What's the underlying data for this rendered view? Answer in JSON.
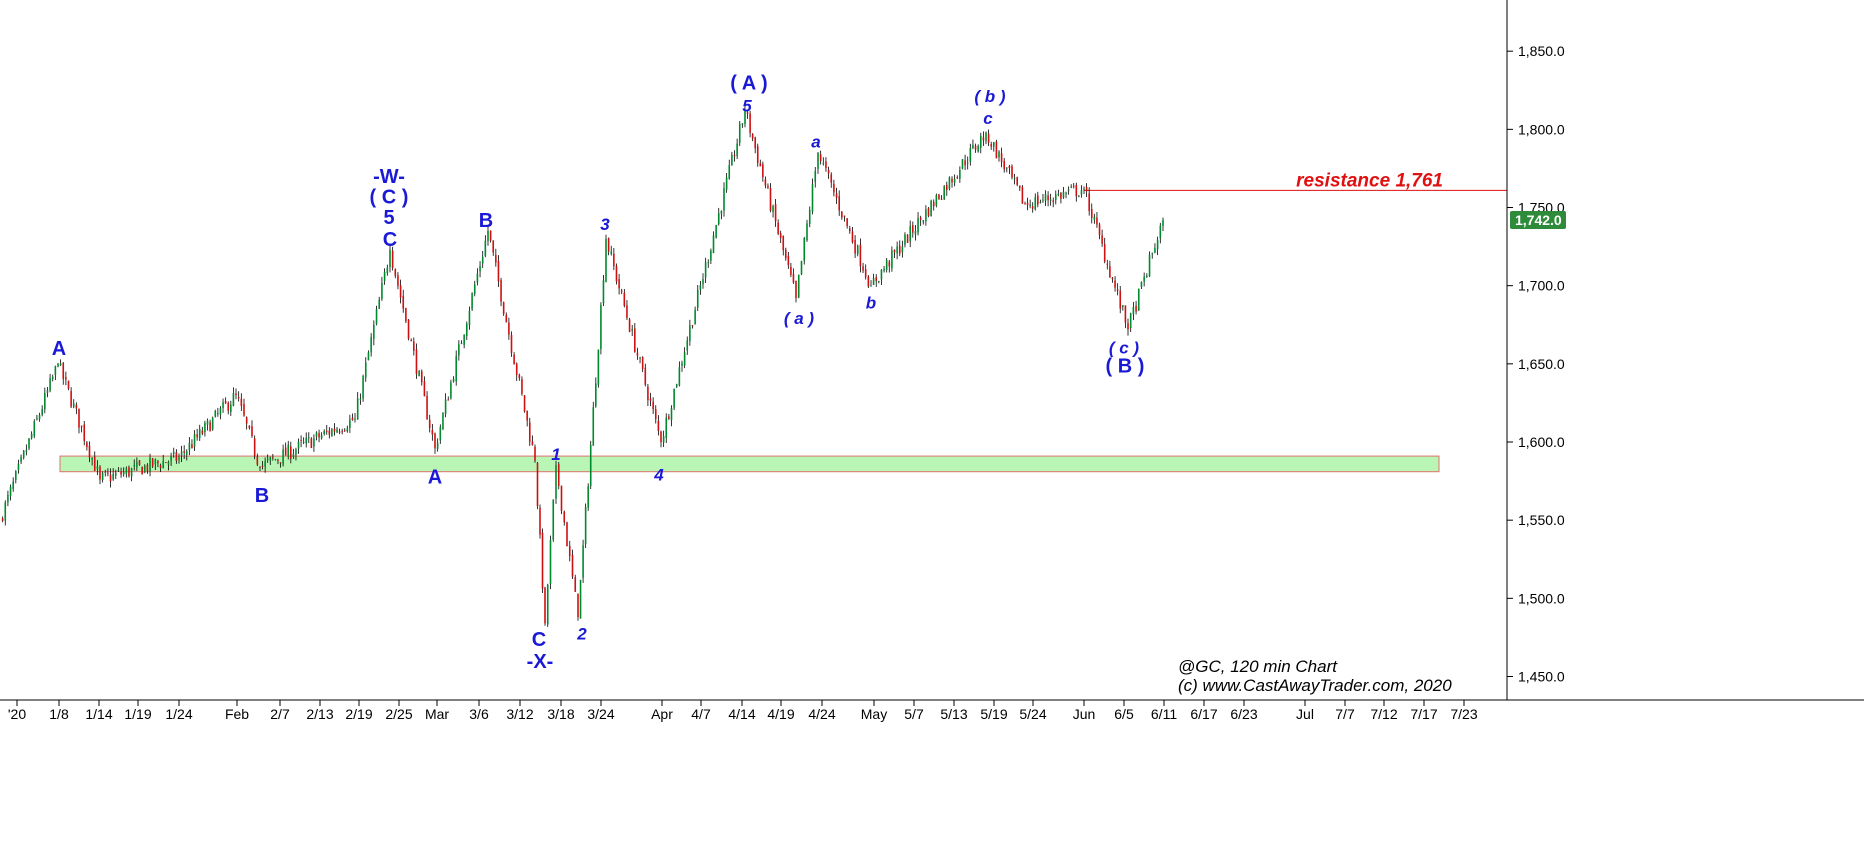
{
  "chart_data": {
    "type": "candlestick",
    "symbol_caption": "@GC, 120 min Chart",
    "copyright": "(c) www.CastAwayTrader.com, 2020",
    "last_price_label": "1,742.0",
    "resistance": {
      "label": "resistance 1,761",
      "value": 1761
    },
    "support_zone": {
      "low": 1581,
      "high": 1591
    },
    "ylim": [
      1430,
      1880
    ],
    "y_ticks": [
      {
        "value": 1450,
        "label": "1,450.0"
      },
      {
        "value": 1500,
        "label": "1,500.0"
      },
      {
        "value": 1550,
        "label": "1,550.0"
      },
      {
        "value": 1600,
        "label": "1,600.0"
      },
      {
        "value": 1650,
        "label": "1,650.0"
      },
      {
        "value": 1700,
        "label": "1,700.0"
      },
      {
        "value": 1750,
        "label": "1,750.0"
      },
      {
        "value": 1800,
        "label": "1,800.0"
      },
      {
        "value": 1850,
        "label": "1,850.0"
      }
    ],
    "x_ticks": [
      "'20",
      "1/8",
      "1/14",
      "1/19",
      "1/24",
      "Feb",
      "2/7",
      "2/13",
      "2/19",
      "2/25",
      "Mar",
      "3/6",
      "3/12",
      "3/18",
      "3/24",
      "Apr",
      "4/7",
      "4/14",
      "4/19",
      "4/24",
      "May",
      "5/7",
      "5/13",
      "5/19",
      "5/24",
      "Jun",
      "6/5",
      "6/11",
      "6/17",
      "6/23",
      "Jul",
      "7/7",
      "7/12",
      "7/17",
      "7/23"
    ],
    "price_anchors": [
      {
        "date": "'20",
        "price": 1550
      },
      {
        "date": "1/8",
        "price": 1650
      },
      {
        "date": "1/14",
        "price": 1576
      },
      {
        "date": "1/24",
        "price": 1590
      },
      {
        "date": "Feb",
        "price": 1630
      },
      {
        "date": "Feb",
        "price": 1584
      },
      {
        "date": "2/19",
        "price": 1615
      },
      {
        "date": "2/25",
        "price": 1723
      },
      {
        "date": "Mar",
        "price": 1596
      },
      {
        "date": "3/6",
        "price": 1735
      },
      {
        "date": "3/12",
        "price": 1588
      },
      {
        "date": "3/18",
        "price": 1484
      },
      {
        "date": "3/18",
        "price": 1585
      },
      {
        "date": "3/24",
        "price": 1488
      },
      {
        "date": "3/24",
        "price": 1730
      },
      {
        "date": "Apr",
        "price": 1600
      },
      {
        "date": "4/14",
        "price": 1812
      },
      {
        "date": "4/19",
        "price": 1692
      },
      {
        "date": "4/24",
        "price": 1785
      },
      {
        "date": "May",
        "price": 1700
      },
      {
        "date": "5/19",
        "price": 1798
      },
      {
        "date": "5/24",
        "price": 1752
      },
      {
        "date": "Jun",
        "price": 1762
      },
      {
        "date": "6/5",
        "price": 1672
      },
      {
        "date": "6/11",
        "price": 1742
      }
    ],
    "wave_labels": [
      {
        "text": "A",
        "date": "1/8",
        "price": 1660,
        "style": "upright"
      },
      {
        "text": "B",
        "date": "Feb",
        "price": 1566,
        "style": "upright"
      },
      {
        "text": "-W-",
        "date": "2/25",
        "price": 1770,
        "style": "upright"
      },
      {
        "text": "( C )",
        "date": "2/25",
        "price": 1757,
        "style": "upright"
      },
      {
        "text": "5",
        "date": "2/25",
        "price": 1744,
        "style": "upright"
      },
      {
        "text": "C",
        "date": "2/25",
        "price": 1730,
        "style": "upright"
      },
      {
        "text": "A",
        "date": "Mar",
        "price": 1578,
        "style": "upright"
      },
      {
        "text": "B",
        "date": "3/6",
        "price": 1742,
        "style": "upright"
      },
      {
        "text": "1",
        "date": "3/18",
        "price": 1593,
        "style": "italic"
      },
      {
        "text": "C",
        "date": "3/18",
        "price": 1474,
        "style": "upright"
      },
      {
        "text": "-X-",
        "date": "3/18",
        "price": 1460,
        "style": "upright"
      },
      {
        "text": "3",
        "date": "3/24",
        "price": 1740,
        "style": "italic"
      },
      {
        "text": "2",
        "date": "3/24",
        "price": 1478,
        "style": "italic"
      },
      {
        "text": "4",
        "date": "Apr",
        "price": 1580,
        "style": "italic"
      },
      {
        "text": "( A )",
        "date": "4/14",
        "price": 1830,
        "style": "upright"
      },
      {
        "text": "5",
        "date": "4/14",
        "price": 1816,
        "style": "italic"
      },
      {
        "text": "( a )",
        "date": "4/19",
        "price": 1680,
        "style": "italic"
      },
      {
        "text": "a",
        "date": "4/24",
        "price": 1793,
        "style": "italic"
      },
      {
        "text": "b",
        "date": "May",
        "price": 1690,
        "style": "italic"
      },
      {
        "text": "( b )",
        "date": "5/19",
        "price": 1822,
        "style": "italic"
      },
      {
        "text": "c",
        "date": "5/19",
        "price": 1808,
        "style": "italic"
      },
      {
        "text": "( c )",
        "date": "6/5",
        "price": 1661,
        "style": "italic"
      },
      {
        "text": "( B )",
        "date": "6/5",
        "price": 1649,
        "style": "upright"
      }
    ]
  },
  "colors": {
    "up_candle": "#008a2e",
    "down_candle": "#d01010",
    "wick": "#000000",
    "wave_label": "#1a1ad6",
    "resistance_line": "#e01010",
    "support_fill": "#b9f5b5",
    "support_border": "#e07070",
    "price_tag_bg": "#2e8b3a",
    "axis": "#000000"
  }
}
